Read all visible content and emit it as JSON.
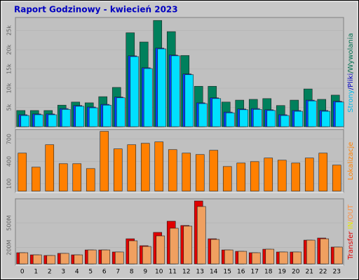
{
  "chart_data": [
    {
      "type": "bar",
      "title": "Raport Godzinowy -  kwiecień 2023",
      "y_label_parts": [
        {
          "text": "Strony",
          "color": "#00b8e8"
        },
        {
          "text": "/",
          "color": "#0000c0"
        },
        {
          "text": "Pliki",
          "color": "#0000c0"
        },
        {
          "text": "/",
          "color": "#006040"
        },
        {
          "text": "Wywolania",
          "color": "#007050"
        }
      ],
      "series": [
        {
          "color": "#00805c",
          "values": [
            4200,
            4200,
            4200,
            5600,
            6400,
            6200,
            7800,
            10200,
            24400,
            22000,
            27600,
            24700,
            18500,
            10500,
            10500,
            6400,
            6900,
            7100,
            7300,
            5500,
            6900,
            9800,
            7100,
            8200
          ]
        },
        {
          "color": "#0040ff",
          "values": [
            3100,
            3300,
            3300,
            4700,
            5500,
            5100,
            5800,
            7700,
            18400,
            15300,
            20400,
            18600,
            13700,
            6200,
            7500,
            3800,
            4600,
            4700,
            4400,
            3100,
            4200,
            6900,
            4200,
            6600
          ]
        },
        {
          "color": "#00e0ff",
          "values": [
            2900,
            3100,
            3100,
            4500,
            5300,
            4900,
            5600,
            7500,
            18200,
            15100,
            20200,
            18400,
            13500,
            6000,
            7300,
            3600,
            4400,
            4500,
            4200,
            2900,
            4000,
            6700,
            4000,
            6400
          ]
        }
      ],
      "ylim": [
        0,
        28000
      ],
      "yticks": [
        {
          "value": 5000,
          "label": "5k"
        },
        {
          "value": 10000,
          "label": "10k"
        },
        {
          "value": 15000,
          "label": "15k"
        },
        {
          "value": 20000,
          "label": "20k"
        },
        {
          "value": 25000,
          "label": "25k"
        }
      ],
      "grid": true
    },
    {
      "type": "bar",
      "y_label_parts": [
        {
          "text": "Lokalizacje",
          "color": "#ff8000"
        }
      ],
      "series": [
        {
          "color": "#ff8000",
          "values": [
            511,
            322,
            624,
            369,
            369,
            303,
            804,
            568,
            624,
            643,
            662,
            558,
            511,
            492,
            549,
            331,
            378,
            397,
            445,
            416,
            378,
            445,
            511,
            350
          ]
        }
      ],
      "ylim": [
        0,
        810
      ],
      "yticks": [
        100,
        400,
        700
      ],
      "grid": true
    },
    {
      "type": "bar",
      "y_label_parts": [
        {
          "text": "Transfer",
          "color": "#e00000"
        },
        {
          "text": "IN",
          "color": "#e8e800"
        },
        {
          "text": "/OUT",
          "color": "#ff9040"
        }
      ],
      "categories": [
        "0",
        "1",
        "2",
        "3",
        "4",
        "5",
        "6",
        "7",
        "8",
        "9",
        "10",
        "11",
        "12",
        "13",
        "14",
        "15",
        "16",
        "17",
        "18",
        "19",
        "20",
        "21",
        "22",
        "23"
      ],
      "series": [
        {
          "color": "#e00000",
          "values": [
            137,
            111,
            103,
            129,
            111,
            171,
            171,
            146,
            308,
            223,
            386,
            523,
            471,
            771,
            308,
            171,
            154,
            137,
            180,
            146,
            146,
            291,
            317,
            206
          ]
        },
        {
          "color": "#f0a060",
          "values": [
            137,
            111,
            103,
            129,
            111,
            171,
            171,
            146,
            283,
            214,
            343,
            437,
            463,
            703,
            300,
            171,
            154,
            137,
            180,
            146,
            146,
            291,
            308,
            206
          ]
        }
      ],
      "ylim": [
        0,
        780
      ],
      "yticks": [
        {
          "value": 200,
          "label": "200M"
        },
        {
          "value": 500,
          "label": "500M"
        }
      ],
      "grid": true
    }
  ]
}
